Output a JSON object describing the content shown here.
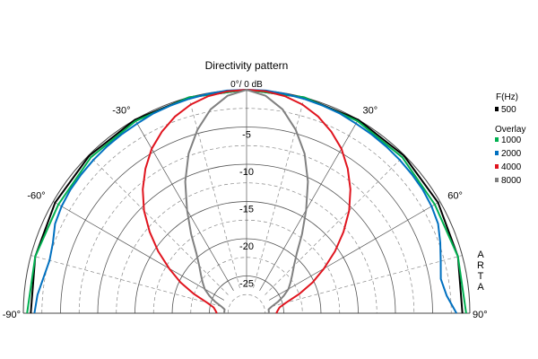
{
  "chart_data": {
    "type": "line",
    "subtype": "polar-half",
    "title": "Directivity pattern",
    "top_label": "0°/ 0 dB",
    "radial_axis": {
      "range": [
        -30,
        0
      ],
      "tick_labels": [
        "-5",
        "-10",
        "-15",
        "-20",
        "-25"
      ],
      "grid_solid_every_db": 5,
      "grid_dashed_every_db": 2.5
    },
    "angle_axis": {
      "range": [
        -90,
        90
      ],
      "tick_labels": [
        "-90°",
        "-60°",
        "-30°",
        "30°",
        "60°",
        "90°"
      ],
      "spoke_step_deg": 15
    },
    "legend": {
      "header": "F(Hz)",
      "group_label": "Overlay",
      "position": "right"
    },
    "watermark": "ARTA",
    "series": [
      {
        "name": "500",
        "color": "#000000",
        "angles": [
          -90,
          -75,
          -60,
          -45,
          -30,
          -15,
          0,
          15,
          30,
          45,
          60,
          75,
          90
        ],
        "values": [
          -1,
          -0.6,
          -0.3,
          -0.1,
          0,
          0,
          0,
          0,
          0,
          -0.1,
          -0.3,
          -0.6,
          -1
        ]
      },
      {
        "name": "1000",
        "color": "#00b050",
        "angles": [
          -90,
          -75,
          -60,
          -45,
          -30,
          -15,
          0,
          15,
          30,
          45,
          60,
          75,
          90
        ],
        "values": [
          -0.5,
          -0.6,
          -0.8,
          -0.4,
          -0.2,
          0,
          0,
          0,
          -0.2,
          -0.4,
          -0.8,
          -0.6,
          -0.5
        ]
      },
      {
        "name": "2000",
        "color": "#0070c0",
        "angles": [
          -90,
          -85,
          -80,
          -75,
          -70,
          -65,
          -60,
          -55,
          -50,
          -45,
          -40,
          -35,
          -30,
          -25,
          -20,
          -15,
          -10,
          -5,
          0,
          5,
          10,
          15,
          20,
          25,
          30,
          35,
          40,
          45,
          50,
          55,
          60,
          65,
          70,
          75,
          80,
          85,
          90
        ],
        "values": [
          -1.5,
          -1.8,
          -2.3,
          -2.6,
          -2.3,
          -1.6,
          -1.3,
          -1.1,
          -1.0,
          -0.9,
          -0.8,
          -0.7,
          -0.6,
          -0.4,
          -0.3,
          -0.2,
          -0.1,
          0,
          0,
          0,
          -0.1,
          -0.2,
          -0.3,
          -0.4,
          -0.6,
          -0.7,
          -0.8,
          -0.9,
          -1.0,
          -1.1,
          -1.3,
          -1.6,
          -2.3,
          -3.0,
          -3.5,
          -3.0,
          -1.8
        ]
      },
      {
        "name": "4000",
        "color": "#e0141e",
        "angles": [
          -90,
          -85,
          -80,
          -75,
          -70,
          -65,
          -60,
          -55,
          -50,
          -45,
          -40,
          -35,
          -30,
          -25,
          -20,
          -15,
          -10,
          -5,
          0,
          5,
          10,
          15,
          20,
          25,
          30,
          35,
          40,
          45,
          50,
          55,
          60,
          65,
          70,
          75,
          80,
          85,
          90
        ],
        "values": [
          -26.0,
          -25.8,
          -25.5,
          -24.5,
          -22.5,
          -20.2,
          -18.0,
          -15.5,
          -13.0,
          -10.5,
          -8.3,
          -6.3,
          -4.5,
          -3.1,
          -1.9,
          -1.0,
          -0.4,
          -0.1,
          0,
          -0.1,
          -0.4,
          -1.0,
          -1.9,
          -3.1,
          -4.5,
          -6.3,
          -8.3,
          -10.5,
          -13.0,
          -15.5,
          -18.0,
          -20.2,
          -22.5,
          -24.5,
          -25.5,
          -25.8,
          -26.0
        ]
      },
      {
        "name": "8000",
        "color": "#808080",
        "angles": [
          -90,
          -85,
          -80,
          -75,
          -70,
          -65,
          -60,
          -55,
          -50,
          -45,
          -40,
          -35,
          -30,
          -25,
          -20,
          -15,
          -10,
          -5,
          0,
          5,
          10,
          15,
          20,
          25,
          30,
          35,
          40,
          45,
          50,
          55,
          60,
          65,
          70,
          75,
          80,
          85,
          90
        ],
        "values": [
          -27.0,
          -27.0,
          -27.0,
          -26.5,
          -25.5,
          -24.5,
          -23.5,
          -22.8,
          -22.0,
          -21.0,
          -19.5,
          -17.0,
          -14.0,
          -10.5,
          -7.2,
          -4.5,
          -2.2,
          -0.7,
          0,
          -0.7,
          -2.2,
          -4.5,
          -7.2,
          -10.5,
          -14.0,
          -17.0,
          -19.5,
          -21.0,
          -22.0,
          -22.8,
          -23.5,
          -24.5,
          -25.5,
          -26.5,
          -27.0,
          -27.0,
          -27.0
        ]
      }
    ]
  }
}
